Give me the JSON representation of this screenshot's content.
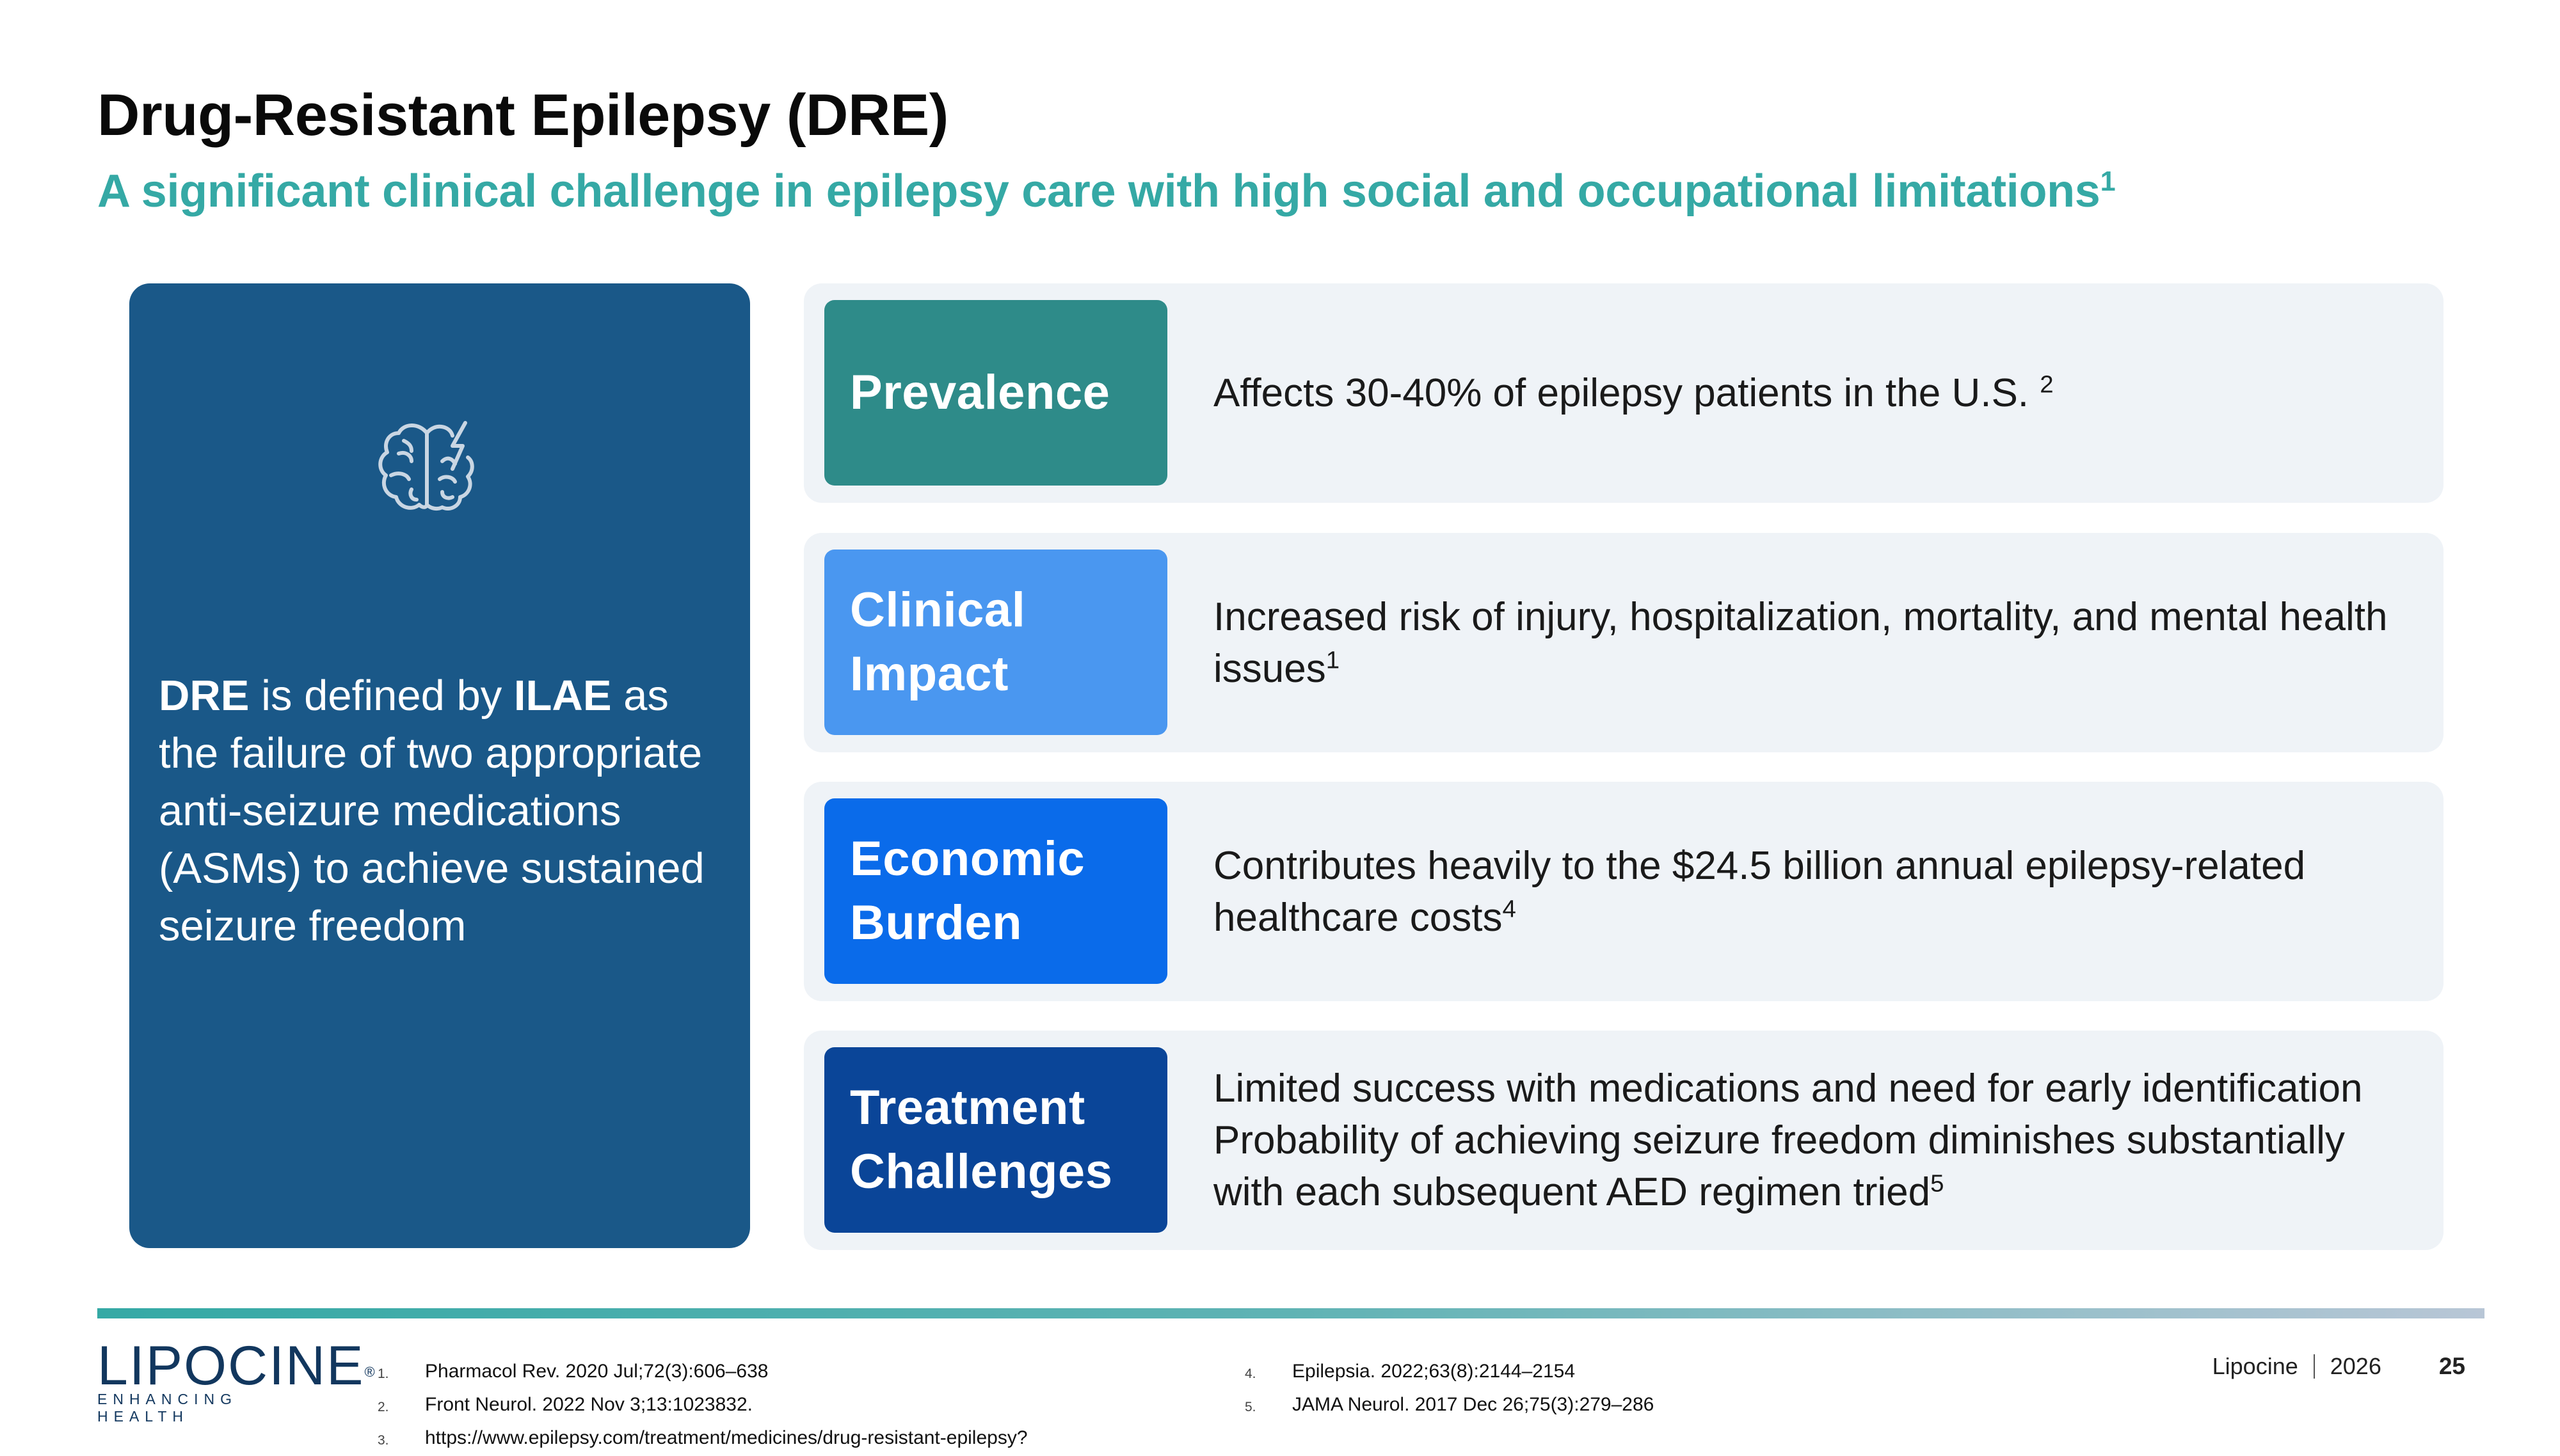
{
  "header": {
    "title": "Drug-Resistant Epilepsy (DRE)",
    "subtitle": "A significant clinical challenge in epilepsy care with high social and occupational limitations",
    "subtitle_sup": "1"
  },
  "left_panel": {
    "icon": "brain-lightning-icon",
    "def_1": "DRE",
    "def_2": " is defined by ",
    "def_3": "ILAE",
    "def_4": " as the failure of two appropriate anti-seizure medications (ASMs) to achieve sustained seizure freedom"
  },
  "rows": [
    {
      "label": "Prevalence",
      "color": "#2e8b89",
      "text": "Affects 30-40% of epilepsy patients in the U.S. ",
      "sup": "2"
    },
    {
      "label": "Clinical Impact",
      "color": "#4a97f0",
      "text": "Increased risk of injury, hospitalization, mortality, and mental health issues",
      "sup": "1"
    },
    {
      "label": "Economic Burden",
      "color": "#0a6bea",
      "text": "Contributes heavily to the $24.5 billion annual epilepsy-related healthcare costs",
      "sup": "4"
    },
    {
      "label": "Treatment Challenges",
      "color": "#0a4598",
      "text_line1": "Limited success with medications and need for early identification",
      "text_line2": "Probability of achieving seizure freedom diminishes substantially with each subsequent AED regimen tried",
      "sup": "5"
    }
  ],
  "footer": {
    "logo_word": "LIPOCINE",
    "logo_tm": "®",
    "logo_tagline": "ENHANCING HEALTH",
    "refs_left": [
      {
        "num": "1.",
        "text": "Pharmacol Rev. 2020 Jul;72(3):606–638"
      },
      {
        "num": "2.",
        "text": "Front Neurol. 2022 Nov 3;13:1023832."
      },
      {
        "num": "3.",
        "text": "https://www.epilepsy.com/treatment/medicines/drug-resistant-epilepsy?"
      }
    ],
    "refs_right": [
      {
        "num": "4.",
        "text": "Epilepsia. 2022;63(8):2144–2154"
      },
      {
        "num": "5.",
        "text": "JAMA Neurol. 2017 Dec 26;75(3):279–286"
      }
    ],
    "company": "Lipocine",
    "year": "2026",
    "page": "25"
  },
  "colors": {
    "accent": "#35a9a5",
    "panel": "#1a5888",
    "row_bg": "#eff3f7"
  }
}
